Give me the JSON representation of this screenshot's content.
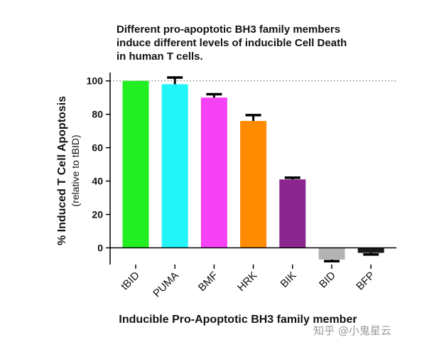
{
  "chart_data": {
    "type": "bar",
    "title_lines": [
      "Different pro-apoptotic BH3 family members",
      "induce different levels of inducible Cell Death",
      "in human T cells."
    ],
    "categories": [
      "tBID",
      "PUMA",
      "BMF",
      "HRK",
      "BIK",
      "BID",
      "BFP"
    ],
    "values": [
      100,
      98,
      90,
      76,
      41,
      -7,
      -3
    ],
    "errors": [
      0,
      4,
      2,
      3.5,
      1,
      1,
      1
    ],
    "colors": [
      "#22ee22",
      "#22f4f8",
      "#f642f4",
      "#ff8c00",
      "#8b2590",
      "#b4b4b4",
      "#1a1a1a"
    ],
    "xlabel": "Inducible Pro-Apoptotic BH3 family member",
    "ylabel": "% Induced T Cell Apoptosis",
    "ylabel_sub": "(relative to tBID)",
    "ylim": [
      -10,
      105
    ],
    "yticks": [
      0,
      20,
      40,
      60,
      80,
      100
    ],
    "reference_line": 100,
    "grid": false
  },
  "watermark": "知乎 @小鬼星云"
}
